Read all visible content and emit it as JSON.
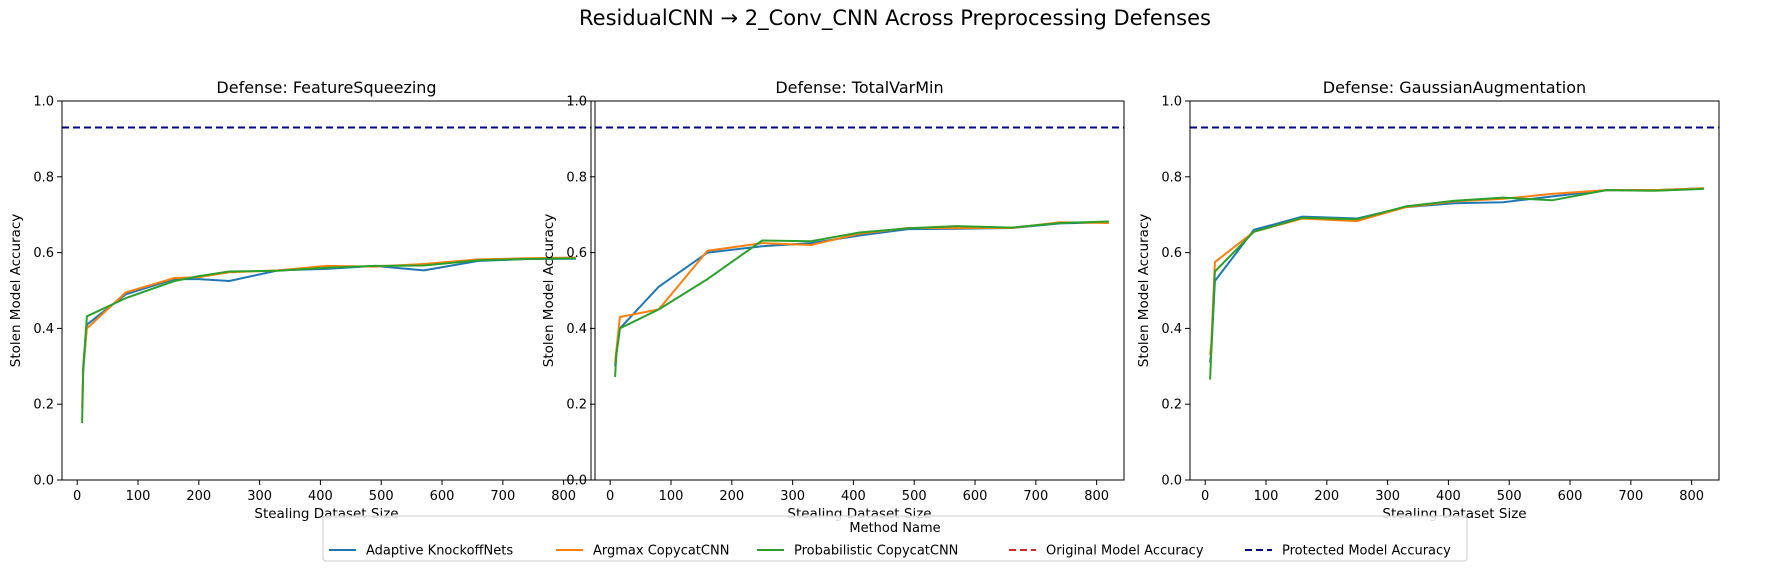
{
  "figure": {
    "title": "ResidualCNN → 2_Conv_CNN Across Preprocessing Defenses"
  },
  "colors": {
    "adaptive": "#1f77b4",
    "argmax": "#ff7f0e",
    "probabilistic": "#2ca02c",
    "original": "#d62728",
    "protected": "#00008b"
  },
  "legend": {
    "title": "Method Name",
    "placement": "bottom-center",
    "items": [
      {
        "label": "Adaptive KnockoffNets",
        "color_key": "adaptive",
        "style": "solid"
      },
      {
        "label": "Argmax CopycatCNN",
        "color_key": "argmax",
        "style": "solid"
      },
      {
        "label": "Probabilistic CopycatCNN",
        "color_key": "probabilistic",
        "style": "solid"
      },
      {
        "label": "Original Model Accuracy",
        "color_key": "original",
        "style": "dashed"
      },
      {
        "label": "Protected Model Accuracy",
        "color_key": "protected",
        "style": "dashed"
      }
    ]
  },
  "chart_data": [
    {
      "type": "line",
      "title": "Defense: FeatureSqueezing",
      "xlabel": "Stealing Dataset Size",
      "ylabel": "Stolen Model Accuracy",
      "xlim": [
        -25,
        845
      ],
      "ylim": [
        0,
        1.0
      ],
      "xticks": [
        0,
        100,
        200,
        300,
        400,
        500,
        600,
        700,
        800
      ],
      "yticks": [
        "0.0",
        "0.2",
        "0.4",
        "0.6",
        "0.8",
        "1.0"
      ],
      "grid": false,
      "hlines": [
        {
          "name": "Protected Model Accuracy",
          "y": 0.93
        }
      ],
      "series": [
        {
          "name": "Adaptive KnockoffNets",
          "x": [
            8,
            10,
            16,
            80,
            160,
            200,
            250,
            330,
            410,
            490,
            570,
            660,
            740,
            820
          ],
          "y": [
            0.29,
            0.29,
            0.41,
            0.49,
            0.53,
            0.53,
            0.525,
            0.553,
            0.557,
            0.565,
            0.553,
            0.578,
            0.583,
            0.584
          ]
        },
        {
          "name": "Argmax CopycatCNN",
          "x": [
            8,
            10,
            16,
            80,
            160,
            200,
            250,
            330,
            410,
            490,
            570,
            660,
            740,
            820
          ],
          "y": [
            0.19,
            0.3,
            0.4,
            0.495,
            0.533,
            0.535,
            0.548,
            0.553,
            0.565,
            0.563,
            0.57,
            0.582,
            0.585,
            0.587
          ]
        },
        {
          "name": "Probabilistic CopycatCNN",
          "x": [
            8,
            10,
            16,
            80,
            160,
            200,
            250,
            330,
            410,
            490,
            570,
            660,
            740,
            820
          ],
          "y": [
            0.15,
            0.3,
            0.432,
            0.48,
            0.525,
            0.538,
            0.55,
            0.552,
            0.56,
            0.565,
            0.566,
            0.58,
            0.583,
            0.585
          ]
        }
      ]
    },
    {
      "type": "line",
      "title": "Defense: TotalVarMin",
      "xlabel": "Stealing Dataset Size",
      "ylabel": "Stolen Model Accuracy",
      "xlim": [
        -25,
        845
      ],
      "ylim": [
        0,
        1.0
      ],
      "xticks": [
        0,
        100,
        200,
        300,
        400,
        500,
        600,
        700,
        800
      ],
      "yticks": [
        "0.0",
        "0.2",
        "0.4",
        "0.6",
        "0.8",
        "1.0"
      ],
      "grid": false,
      "hlines": [
        {
          "name": "Protected Model Accuracy",
          "y": 0.93
        }
      ],
      "series": [
        {
          "name": "Adaptive KnockoffNets",
          "x": [
            8,
            10,
            16,
            80,
            160,
            250,
            330,
            410,
            490,
            570,
            660,
            740,
            820
          ],
          "y": [
            0.3,
            0.33,
            0.4,
            0.51,
            0.6,
            0.617,
            0.625,
            0.645,
            0.662,
            0.663,
            0.665,
            0.677,
            0.68
          ]
        },
        {
          "name": "Argmax CopycatCNN",
          "x": [
            8,
            10,
            16,
            80,
            160,
            250,
            330,
            410,
            490,
            570,
            660,
            740,
            820
          ],
          "y": [
            0.31,
            0.34,
            0.43,
            0.45,
            0.605,
            0.625,
            0.62,
            0.65,
            0.665,
            0.665,
            0.665,
            0.68,
            0.678
          ]
        },
        {
          "name": "Probabilistic CopycatCNN",
          "x": [
            8,
            10,
            16,
            80,
            160,
            250,
            330,
            410,
            490,
            570,
            660,
            740,
            820
          ],
          "y": [
            0.272,
            0.33,
            0.4,
            0.45,
            0.53,
            0.632,
            0.63,
            0.653,
            0.664,
            0.67,
            0.666,
            0.678,
            0.682
          ]
        }
      ]
    },
    {
      "type": "line",
      "title": "Defense: GaussianAugmentation",
      "xlabel": "Stealing Dataset Size",
      "ylabel": "Stolen Model Accuracy",
      "xlim": [
        -25,
        845
      ],
      "ylim": [
        0,
        1.0
      ],
      "xticks": [
        0,
        100,
        200,
        300,
        400,
        500,
        600,
        700,
        800
      ],
      "yticks": [
        "0.0",
        "0.2",
        "0.4",
        "0.6",
        "0.8",
        "1.0"
      ],
      "grid": false,
      "hlines": [
        {
          "name": "Protected Model Accuracy",
          "y": 0.93
        }
      ],
      "series": [
        {
          "name": "Adaptive KnockoffNets",
          "x": [
            8,
            10,
            16,
            80,
            160,
            250,
            330,
            410,
            490,
            570,
            660,
            740,
            820
          ],
          "y": [
            0.31,
            0.34,
            0.525,
            0.66,
            0.695,
            0.69,
            0.72,
            0.73,
            0.733,
            0.748,
            0.765,
            0.765,
            0.77
          ]
        },
        {
          "name": "Argmax CopycatCNN",
          "x": [
            8,
            10,
            16,
            80,
            160,
            250,
            330,
            410,
            490,
            570,
            660,
            740,
            820
          ],
          "y": [
            0.33,
            0.36,
            0.575,
            0.655,
            0.69,
            0.683,
            0.72,
            0.735,
            0.742,
            0.755,
            0.765,
            0.765,
            0.77
          ]
        },
        {
          "name": "Probabilistic CopycatCNN",
          "x": [
            8,
            10,
            16,
            80,
            160,
            250,
            330,
            410,
            490,
            570,
            660,
            740,
            820
          ],
          "y": [
            0.265,
            0.34,
            0.55,
            0.655,
            0.692,
            0.688,
            0.722,
            0.737,
            0.745,
            0.738,
            0.765,
            0.763,
            0.768
          ]
        }
      ]
    }
  ]
}
